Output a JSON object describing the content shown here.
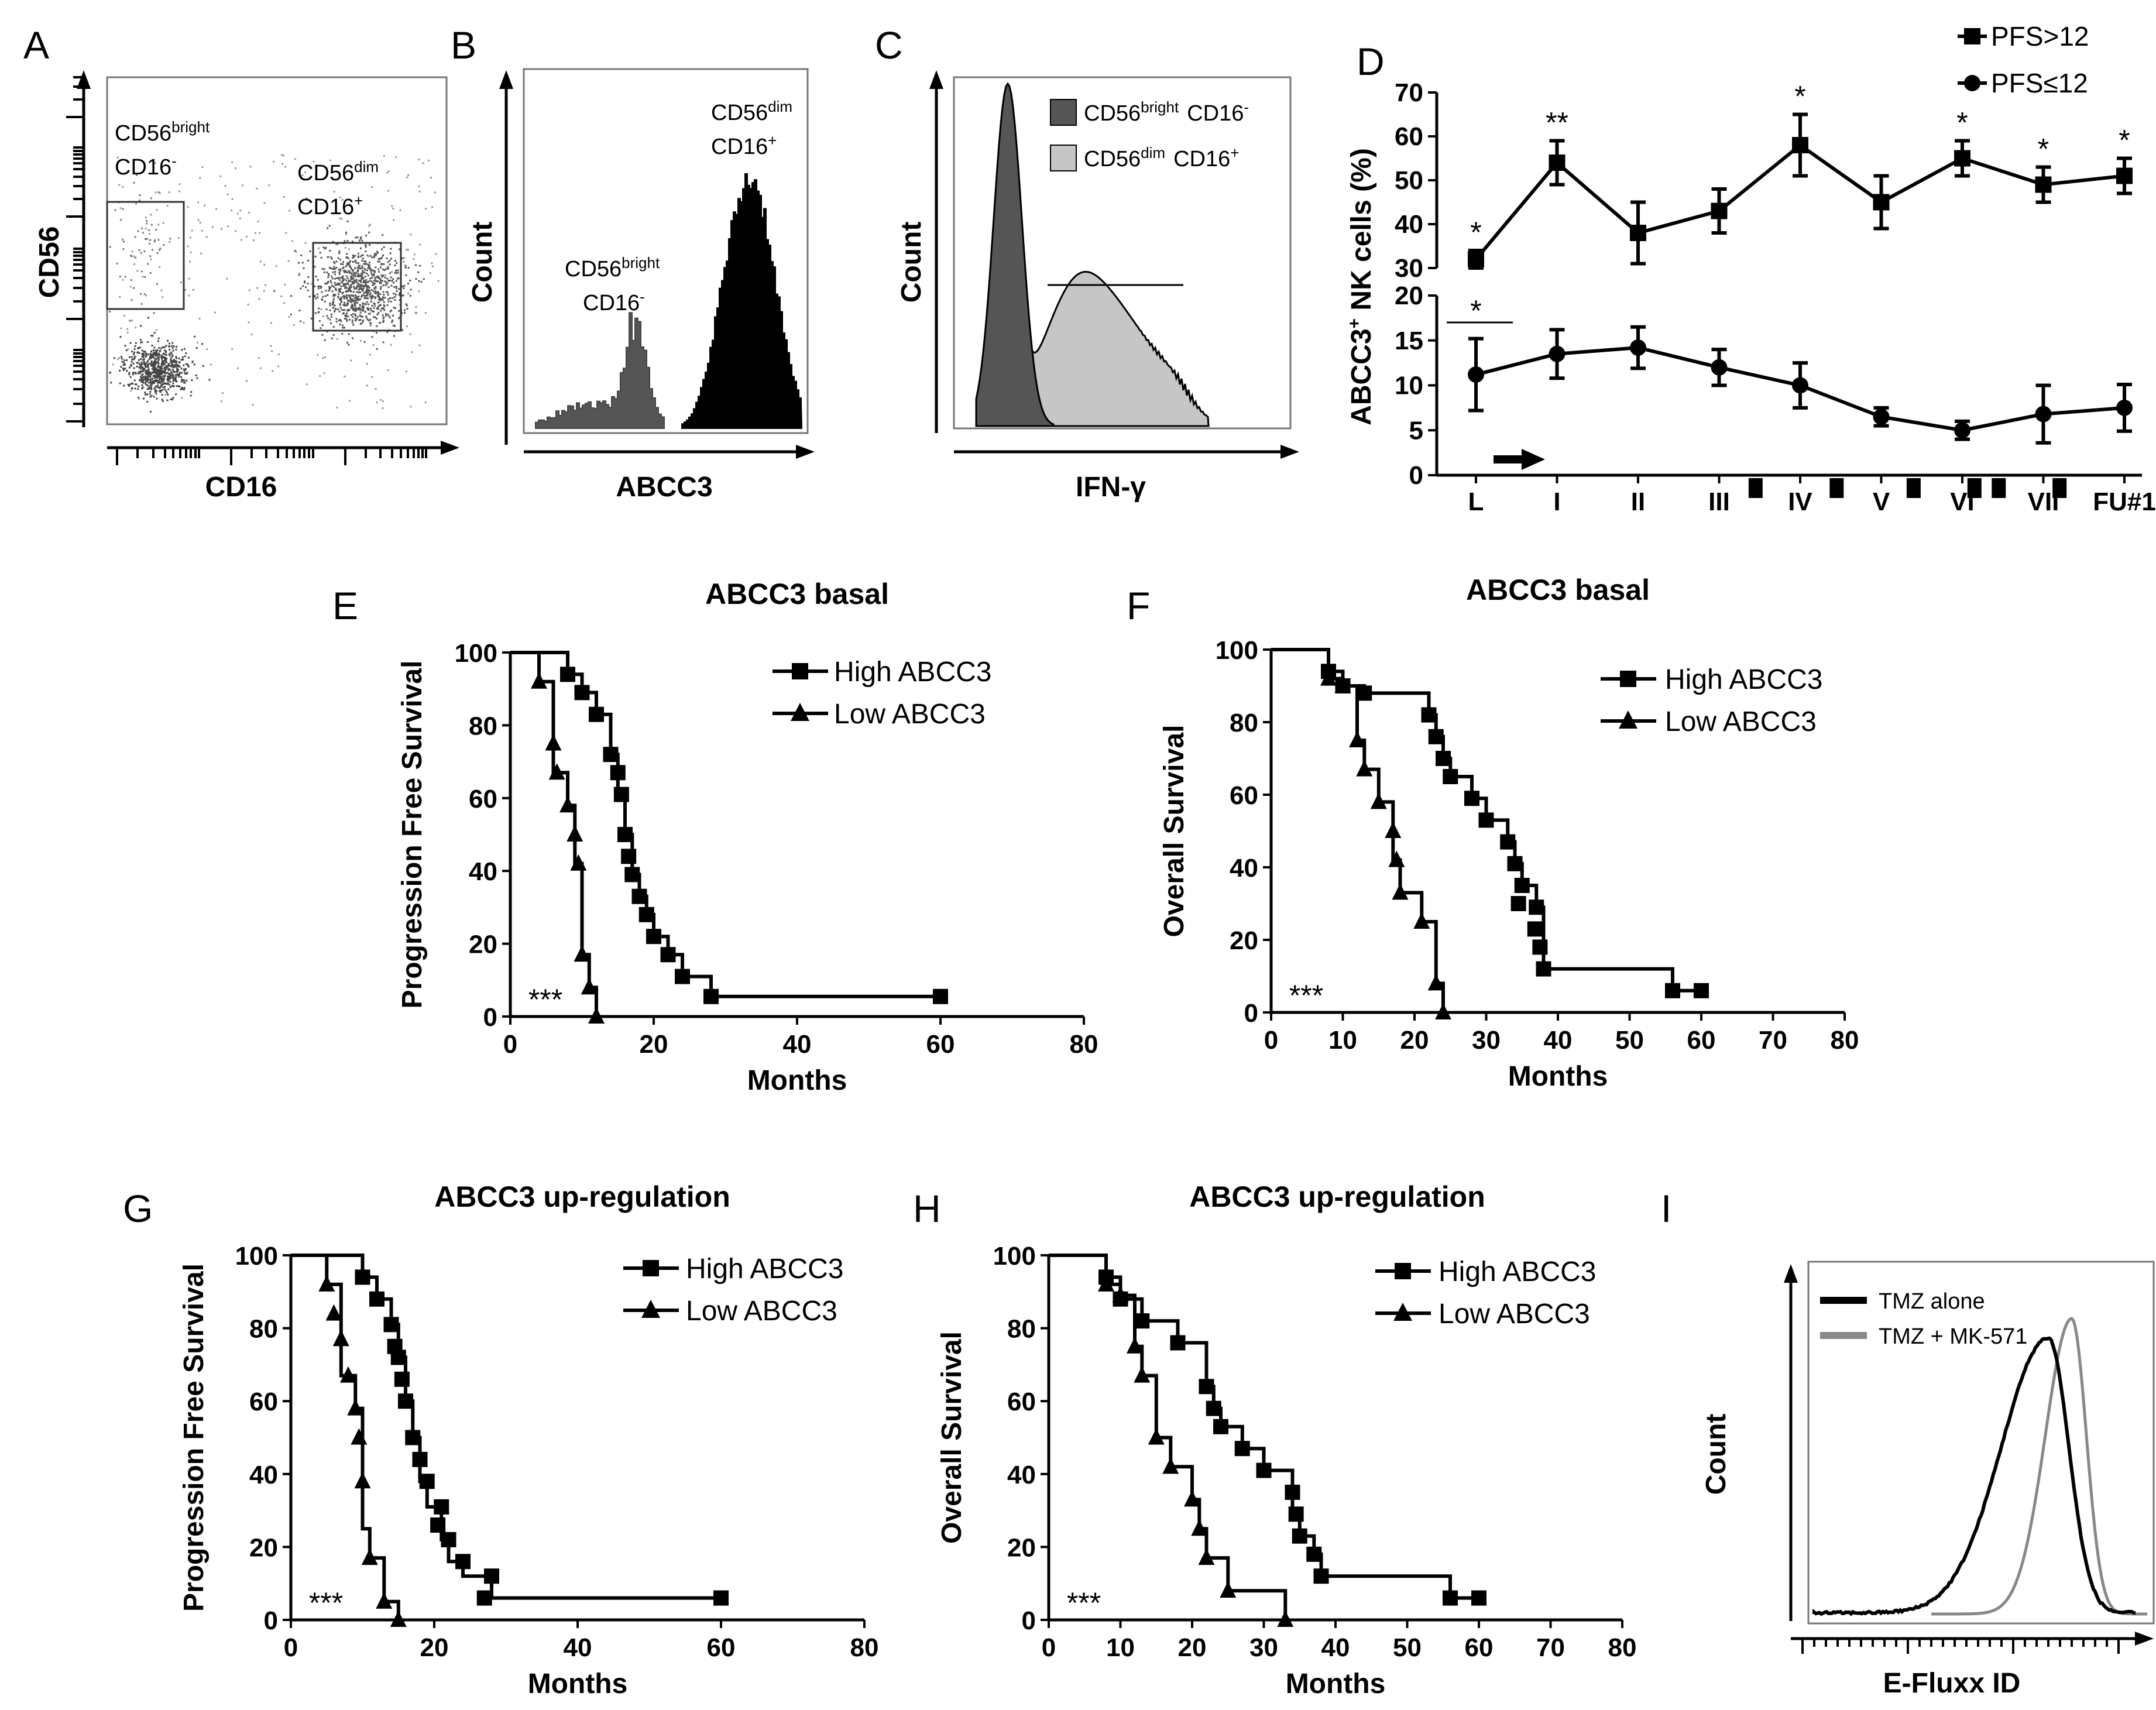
{
  "panels": {
    "A": {
      "letter": "A",
      "xlabel": "CD16",
      "ylabel": "CD56",
      "gate1_line1": "CD56",
      "gate1_sup1": "bright",
      "gate1_line2": "CD16",
      "gate1_sup2": "-",
      "gate2_line1": "CD56",
      "gate2_sup1": "dim",
      "gate2_line2": "CD16",
      "gate2_sup2": "+"
    },
    "B": {
      "letter": "B",
      "xlabel": "ABCC3",
      "ylabel": "Count",
      "peak1_line1": "CD56",
      "peak1_sup1": "bright",
      "peak1_line2": "CD16",
      "peak1_sup2": "-",
      "peak2_line1": "CD56",
      "peak2_sup1": "dim",
      "peak2_line2": "CD16",
      "peak2_sup2": "+"
    },
    "C": {
      "letter": "C",
      "xlabel": "IFN-γ",
      "ylabel": "Count",
      "legend1_a": "CD56",
      "legend1_sup_a": "bright",
      "legend1_b": "CD16",
      "legend1_sup_b": "-",
      "legend2_a": "CD56",
      "legend2_sup_a": "dim",
      "legend2_b": "CD16",
      "legend2_sup_b": "+"
    },
    "D": {
      "letter": "D"
    },
    "E": {
      "letter": "E"
    },
    "F": {
      "letter": "F"
    },
    "G": {
      "letter": "G"
    },
    "H": {
      "letter": "H"
    },
    "I": {
      "letter": "I",
      "xlabel": "E-Fluxx ID",
      "ylabel": "Count",
      "legend1": "TMZ alone",
      "legend2": "TMZ + MK-571",
      "color1": "#000000",
      "color2": "#888888"
    }
  },
  "chart_data": [
    {
      "id": "D",
      "type": "line",
      "ylabel": "ABCC3+ NK cells (%)",
      "ylabel_main": "ABCC3",
      "ylabel_sup": "+",
      "ylabel_rest": " NK cells (%)",
      "categories": [
        "L",
        "I",
        "II",
        "III",
        "IV",
        "V",
        "VI",
        "VII",
        "FU#1"
      ],
      "upper_ylim": [
        30,
        70
      ],
      "upper_yticks": [
        30,
        40,
        50,
        60,
        70
      ],
      "lower_ylim": [
        0,
        20
      ],
      "lower_yticks": [
        0,
        5,
        10,
        15,
        20
      ],
      "series": [
        {
          "name": "PFS>12",
          "marker": "square",
          "values": [
            32,
            54,
            38,
            43,
            58,
            45,
            55,
            49,
            51
          ],
          "errors": [
            2,
            5,
            7,
            5,
            7,
            6,
            4,
            4,
            4
          ]
        },
        {
          "name": "PFS≤12",
          "marker": "circle",
          "values": [
            11.2,
            13.5,
            14.2,
            12,
            10,
            6.5,
            5,
            6.8,
            7.5
          ],
          "errors": [
            4,
            2.7,
            2.3,
            2,
            2.5,
            1,
            1,
            3.2,
            2.6
          ]
        }
      ],
      "significance": [
        "*",
        "**",
        "",
        "",
        "*",
        "",
        "*",
        "*",
        "*"
      ],
      "lower_significance": "*",
      "arrow_position": "between L and I"
    },
    {
      "id": "E",
      "type": "line",
      "title": "ABCC3 basal",
      "xlabel": "Months",
      "ylabel": "Progression Free Survival",
      "xlim": [
        0,
        80
      ],
      "xticks": [
        0,
        20,
        40,
        60,
        80
      ],
      "ylim": [
        0,
        100
      ],
      "yticks": [
        0,
        20,
        40,
        60,
        80,
        100
      ],
      "pvalue_label": "***",
      "series": [
        {
          "name": "High ABCC3",
          "marker": "square",
          "x": [
            0,
            8,
            8,
            10,
            10,
            12,
            12,
            14,
            14,
            15,
            15,
            16,
            16,
            17,
            17,
            18,
            18,
            19,
            19,
            20,
            20,
            22,
            22,
            24,
            24,
            28,
            28,
            60
          ],
          "y": [
            100,
            100,
            94,
            94,
            89,
            89,
            83,
            83,
            72,
            72,
            61,
            61,
            50,
            50,
            39,
            39,
            33,
            33,
            28,
            28,
            22,
            22,
            17,
            17,
            11,
            11,
            5.5,
            5.5
          ],
          "markers_x": [
            8,
            10,
            12,
            14,
            15,
            15.5,
            16,
            16.5,
            17,
            18,
            19,
            20,
            22,
            24,
            28,
            60
          ],
          "markers_y": [
            94,
            89,
            83,
            72,
            67,
            61,
            50,
            44,
            39,
            33,
            28,
            22,
            17,
            11,
            5.5,
            5.5
          ]
        },
        {
          "name": "Low ABCC3",
          "marker": "triangle",
          "x": [
            0,
            4,
            4,
            6,
            6,
            8,
            8,
            9,
            9,
            10,
            10,
            11,
            11,
            12,
            12
          ],
          "y": [
            100,
            100,
            92,
            92,
            67,
            67,
            58,
            58,
            42,
            42,
            17,
            17,
            8,
            8,
            0
          ],
          "markers_x": [
            4,
            6,
            6.5,
            8,
            9,
            9.5,
            10,
            11,
            12
          ],
          "markers_y": [
            92,
            75,
            67,
            58,
            50,
            42,
            17,
            8,
            0
          ]
        }
      ]
    },
    {
      "id": "F",
      "type": "line",
      "title": "ABCC3 basal",
      "xlabel": "Months",
      "ylabel": "Overall Survival",
      "xlim": [
        0,
        80
      ],
      "xticks": [
        0,
        10,
        20,
        30,
        40,
        50,
        60,
        70,
        80
      ],
      "ylim": [
        0,
        100
      ],
      "yticks": [
        0,
        20,
        40,
        60,
        80,
        100
      ],
      "pvalue_label": "***",
      "series": [
        {
          "name": "High ABCC3",
          "marker": "square",
          "x": [
            0,
            8,
            8,
            10,
            10,
            13,
            13,
            22,
            22,
            23,
            23,
            24,
            24,
            25,
            25,
            28,
            28,
            30,
            30,
            33,
            33,
            34,
            34,
            35,
            35,
            37,
            37,
            38,
            38,
            56,
            56,
            60
          ],
          "y": [
            100,
            100,
            94,
            94,
            90,
            90,
            88,
            88,
            82,
            82,
            76,
            76,
            70,
            70,
            65,
            65,
            59,
            59,
            53,
            53,
            47,
            47,
            41,
            41,
            35,
            35,
            29,
            29,
            12,
            12,
            6,
            6
          ],
          "markers_x": [
            8,
            10,
            13,
            22,
            23,
            24,
            25,
            28,
            30,
            33,
            34,
            35,
            37,
            37.5,
            38,
            56,
            60
          ],
          "markers_y": [
            94,
            90,
            88,
            82,
            76,
            70,
            65,
            59,
            53,
            47,
            41,
            35,
            29,
            18,
            12,
            6,
            6
          ],
          "extra_markers": [
            [
              34.5,
              30
            ],
            [
              36.8,
              23
            ]
          ]
        },
        {
          "name": "Low ABCC3",
          "marker": "triangle",
          "x": [
            0,
            8,
            8,
            10,
            10,
            12,
            12,
            13,
            13,
            15,
            15,
            17,
            17,
            18,
            18,
            21,
            21,
            23,
            23,
            24,
            24
          ],
          "y": [
            100,
            100,
            92,
            92,
            90,
            90,
            75,
            75,
            67,
            67,
            58,
            58,
            42,
            42,
            33,
            33,
            25,
            25,
            8,
            8,
            0
          ],
          "markers_x": [
            8,
            10,
            12,
            13,
            15,
            17,
            17.5,
            18,
            21,
            23,
            24
          ],
          "markers_y": [
            92,
            90,
            75,
            67,
            58,
            50,
            42,
            33,
            25,
            8,
            0
          ]
        }
      ]
    },
    {
      "id": "G",
      "type": "line",
      "title": "ABCC3 up-regulation",
      "xlabel": "Months",
      "ylabel": "Progression Free Survival",
      "xlim": [
        0,
        80
      ],
      "xticks": [
        0,
        20,
        40,
        60,
        80
      ],
      "ylim": [
        0,
        100
      ],
      "yticks": [
        0,
        20,
        40,
        60,
        80,
        100
      ],
      "pvalue_label": "***",
      "series": [
        {
          "name": "High ABCC3",
          "marker": "square",
          "x": [
            0,
            10,
            10,
            12,
            12,
            14,
            14,
            15,
            15,
            16,
            16,
            17,
            17,
            18,
            18,
            19,
            19,
            21,
            21,
            22,
            22,
            24,
            24,
            28,
            28,
            60
          ],
          "y": [
            100,
            100,
            94,
            94,
            88,
            88,
            81,
            81,
            72,
            72,
            60,
            60,
            50,
            50,
            38,
            38,
            31,
            31,
            22,
            22,
            16,
            16,
            12,
            12,
            6,
            6
          ],
          "markers_x": [
            10,
            12,
            14,
            14.5,
            15,
            15.5,
            16,
            17,
            18,
            19,
            21,
            22,
            24,
            28,
            60
          ],
          "markers_y": [
            94,
            88,
            81,
            75,
            72,
            66,
            60,
            50,
            44,
            38,
            31,
            22,
            16,
            12,
            6
          ],
          "extra_markers": [
            [
              20.5,
              26
            ],
            [
              27,
              6
            ]
          ]
        },
        {
          "name": "Low ABCC3",
          "marker": "triangle",
          "x": [
            0,
            5,
            5,
            7,
            7,
            9,
            9,
            10,
            10,
            11,
            11,
            13,
            13,
            15,
            15
          ],
          "y": [
            100,
            100,
            92,
            92,
            67,
            67,
            58,
            58,
            25,
            25,
            17,
            17,
            5,
            5,
            0
          ],
          "markers_x": [
            5,
            6,
            7,
            8,
            9,
            9.5,
            10,
            11,
            13,
            15
          ],
          "markers_y": [
            92,
            84,
            77,
            67,
            58,
            50,
            38,
            17,
            5,
            0
          ]
        }
      ]
    },
    {
      "id": "H",
      "type": "line",
      "title": "ABCC3 up-regulation",
      "xlabel": "Months",
      "ylabel": "Overall Survival",
      "xlim": [
        0,
        80
      ],
      "xticks": [
        0,
        10,
        20,
        30,
        40,
        50,
        60,
        70,
        80
      ],
      "ylim": [
        0,
        100
      ],
      "yticks": [
        0,
        20,
        40,
        60,
        80,
        100
      ],
      "pvalue_label": "***",
      "series": [
        {
          "name": "High ABCC3",
          "marker": "square",
          "x": [
            0,
            8,
            8,
            10,
            10,
            13,
            13,
            18,
            18,
            22,
            22,
            23,
            23,
            24,
            24,
            27,
            27,
            30,
            30,
            34,
            34,
            35,
            35,
            37,
            37,
            38,
            38,
            56,
            56,
            60
          ],
          "y": [
            100,
            100,
            94,
            94,
            88,
            88,
            82,
            82,
            76,
            76,
            64,
            64,
            58,
            58,
            53,
            53,
            47,
            47,
            41,
            41,
            29,
            29,
            23,
            23,
            18,
            18,
            12,
            12,
            6,
            6
          ],
          "markers_x": [
            8,
            10,
            13,
            18,
            22,
            23,
            24,
            27,
            30,
            34,
            34.5,
            35,
            37,
            38,
            56,
            60
          ],
          "markers_y": [
            94,
            88,
            82,
            76,
            64,
            58,
            53,
            47,
            41,
            35,
            29,
            23,
            18,
            12,
            6,
            6
          ]
        },
        {
          "name": "Low ABCC3",
          "marker": "triangle",
          "x": [
            0,
            8,
            8,
            10,
            10,
            12,
            12,
            13,
            13,
            15,
            15,
            17,
            17,
            20,
            20,
            21,
            21,
            22,
            22,
            25,
            25,
            33,
            33
          ],
          "y": [
            100,
            100,
            92,
            92,
            89,
            89,
            75,
            75,
            67,
            67,
            50,
            50,
            42,
            42,
            33,
            33,
            25,
            25,
            17,
            17,
            8,
            8,
            0
          ],
          "markers_x": [
            8,
            10,
            12,
            13,
            15,
            17,
            20,
            21,
            22,
            25,
            33
          ],
          "markers_y": [
            92,
            89,
            75,
            67,
            50,
            42,
            33,
            25,
            17,
            8,
            0
          ]
        }
      ]
    }
  ]
}
